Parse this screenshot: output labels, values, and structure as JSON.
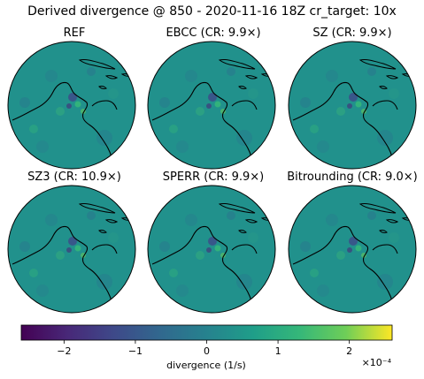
{
  "figure": {
    "title": "Derived divergence @ 850 - 2020-11-16 18Z cr_target: 10x"
  },
  "chart_data": {
    "type": "heatmap",
    "projection": "orthographic globe",
    "variable": "divergence",
    "level": "850",
    "panels": [
      {
        "id": "ref",
        "title": "REF",
        "method": "REF",
        "cr": null
      },
      {
        "id": "ebcc",
        "title": "EBCC (CR: 9.9×)",
        "method": "EBCC",
        "cr": 9.9
      },
      {
        "id": "sz",
        "title": "SZ (CR: 9.9×)",
        "method": "SZ",
        "cr": 9.9
      },
      {
        "id": "sz3",
        "title": "SZ3 (CR: 10.9×)",
        "method": "SZ3",
        "cr": 10.9
      },
      {
        "id": "sperr",
        "title": "SPERR (CR: 9.9×)",
        "method": "SPERR",
        "cr": 9.9
      },
      {
        "id": "bitrounding",
        "title": "Bitrounding (CR: 9.0×)",
        "method": "Bitrounding",
        "cr": 9.0
      }
    ],
    "colorbar": {
      "colormap": "viridis",
      "range": [
        -2.6,
        2.6
      ],
      "ticks": [
        -2,
        -1,
        0,
        1,
        2
      ],
      "tick_labels": [
        "−2",
        "−1",
        "0",
        "1",
        "2"
      ],
      "label": "divergence (1/s)",
      "scale_label": "×10⁻⁴",
      "orientation": "horizontal",
      "placement": "bottom"
    }
  }
}
